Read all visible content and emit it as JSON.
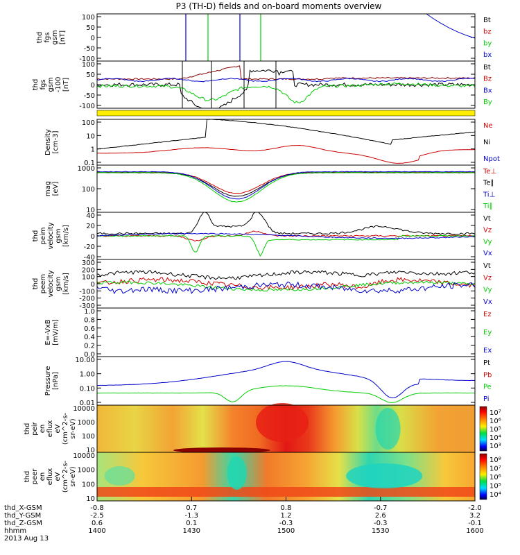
{
  "title": "P3 (TH-D) fields and on-board moments overview",
  "colors": {
    "black": "#000000",
    "red": "#cc0000",
    "green": "#00cc00",
    "blue": "#0000cc",
    "yellow": "#ffee00",
    "darkred": "#8b0000"
  },
  "chart_data": [
    {
      "type": "line",
      "id": "fgs",
      "ylabel": [
        "thd",
        "fgs",
        "gsm",
        "[nT]"
      ],
      "ylim": [
        -100,
        100
      ],
      "yticks": [
        "100",
        "50",
        "0",
        "-50",
        "-100"
      ],
      "legend": [
        {
          "label": "Bt",
          "color": "#000000"
        },
        {
          "label": "bz",
          "color": "#cc0000"
        },
        {
          "label": "by",
          "color": "#00cc00"
        },
        {
          "label": "bx",
          "color": "#0000cc"
        }
      ]
    },
    {
      "type": "line",
      "id": "fgl",
      "ylabel": [
        "thd",
        "fgs",
        "gsm",
        "-100",
        "[nT]"
      ],
      "ylim": [
        -120,
        120
      ],
      "yticks": [
        "100",
        "50",
        "0",
        "-50",
        "-100"
      ],
      "legend": [
        {
          "label": "Bt",
          "color": "#000000"
        },
        {
          "label": "Bz",
          "color": "#cc0000"
        },
        {
          "label": "Bx",
          "color": "#0000cc"
        },
        {
          "label": "By",
          "color": "#00cc00"
        }
      ]
    },
    {
      "type": "line",
      "id": "density",
      "log": true,
      "ylabel": [
        "Density",
        "[cm-3]"
      ],
      "yticks": [
        "100",
        "10",
        "1",
        "0.1"
      ],
      "legend": [
        {
          "label": "Ne",
          "color": "#cc0000"
        },
        {
          "label": "Ni",
          "color": "#000000"
        },
        {
          "label": "Npot",
          "color": "#0000cc"
        }
      ]
    },
    {
      "type": "line",
      "id": "temp",
      "log": true,
      "ylabel": [
        "mag",
        "[eV]"
      ],
      "yticks": [
        "1000",
        "100",
        "10"
      ],
      "legend": [
        {
          "label": "Te⊥",
          "color": "#cc0000"
        },
        {
          "label": "Te∥",
          "color": "#000000"
        },
        {
          "label": "Ti⊥",
          "color": "#0000cc"
        },
        {
          "label": "Ti∥",
          "color": "#00cc00"
        }
      ]
    },
    {
      "type": "line",
      "id": "veli",
      "ylabel": [
        "thd",
        "peim",
        "velocity",
        "gsm",
        "[km/s]"
      ],
      "ylim": [
        -40,
        40
      ],
      "yticks": [
        "40",
        "20",
        "0",
        "-20",
        "-40"
      ],
      "legend": [
        {
          "label": "Vt",
          "color": "#000000"
        },
        {
          "label": "Vz",
          "color": "#cc0000"
        },
        {
          "label": "Vy",
          "color": "#00cc00"
        },
        {
          "label": "Vx",
          "color": "#0000cc"
        }
      ]
    },
    {
      "type": "line",
      "id": "vele",
      "ylabel": [
        "thd",
        "peem",
        "velocity",
        "gsm",
        "[km/s]"
      ],
      "ylim": [
        -300,
        300
      ],
      "yticks": [
        "300",
        "200",
        "100",
        "0",
        "-100",
        "-200",
        "-300"
      ],
      "legend": [
        {
          "label": "Vt",
          "color": "#000000"
        },
        {
          "label": "Vz",
          "color": "#cc0000"
        },
        {
          "label": "Vy",
          "color": "#00cc00"
        },
        {
          "label": "Vx",
          "color": "#0000cc"
        }
      ]
    },
    {
      "type": "line",
      "id": "efield",
      "ylabel": [
        "E=-VxB",
        "[mV/m]"
      ],
      "ylim": [
        0,
        1
      ],
      "yticks": [
        "1.0",
        "0.8",
        "0.6",
        "0.4",
        "0.2",
        "0.0"
      ],
      "legend": [
        {
          "label": "Ez",
          "color": "#cc0000"
        },
        {
          "label": "Ey",
          "color": "#00cc00"
        },
        {
          "label": "Ex",
          "color": "#0000cc"
        }
      ]
    },
    {
      "type": "line",
      "id": "pressure",
      "log": true,
      "ylabel": [
        "Pressure",
        "[nPa]"
      ],
      "yticks": [
        "10.00",
        "1.00",
        "0.10",
        "0.01"
      ],
      "legend": [
        {
          "label": "Pt",
          "color": "#000000"
        },
        {
          "label": "Pb",
          "color": "#cc0000"
        },
        {
          "label": "Pe",
          "color": "#00cc00"
        },
        {
          "label": "Pi",
          "color": "#0000cc"
        }
      ]
    },
    {
      "type": "heatmap",
      "id": "ion_spec",
      "ylabel": [
        "thd",
        "peir",
        "en",
        "eflux",
        "eV",
        "(cm^2-s-",
        "sr-eV)"
      ],
      "yticks": [
        "10000",
        "1000",
        "100",
        "10"
      ],
      "colorbar_ticks": [
        "10⁷",
        "10⁶",
        "10⁵",
        "10⁴",
        "10³"
      ]
    },
    {
      "type": "heatmap",
      "id": "ele_spec",
      "ylabel": [
        "thd",
        "peer",
        "en",
        "eflux",
        "eV",
        "(cm^2-s-",
        "sr-eV)"
      ],
      "yticks": [
        "10000",
        "1000",
        "100",
        "10"
      ],
      "colorbar_ticks": [
        "10⁸",
        "10⁷",
        "10⁶",
        "10⁵",
        "10⁴"
      ]
    }
  ],
  "xaxis": {
    "rows": [
      {
        "label": "thd_X-GSM",
        "values": [
          "-0.8",
          "0.7",
          "0.8",
          "-0.7",
          "-2.0"
        ]
      },
      {
        "label": "thd_Y-GSM",
        "values": [
          "-2.5",
          "-1.3",
          "1.2",
          "2.6",
          "3.2"
        ]
      },
      {
        "label": "thd_Z-GSM",
        "values": [
          "0.6",
          "0.1",
          "-0.3",
          "-0.3",
          "-0.1"
        ]
      },
      {
        "label": "hhmm",
        "values": [
          "1400",
          "1430",
          "1500",
          "1530",
          "1600"
        ]
      }
    ],
    "date": "2013 Aug 13"
  }
}
